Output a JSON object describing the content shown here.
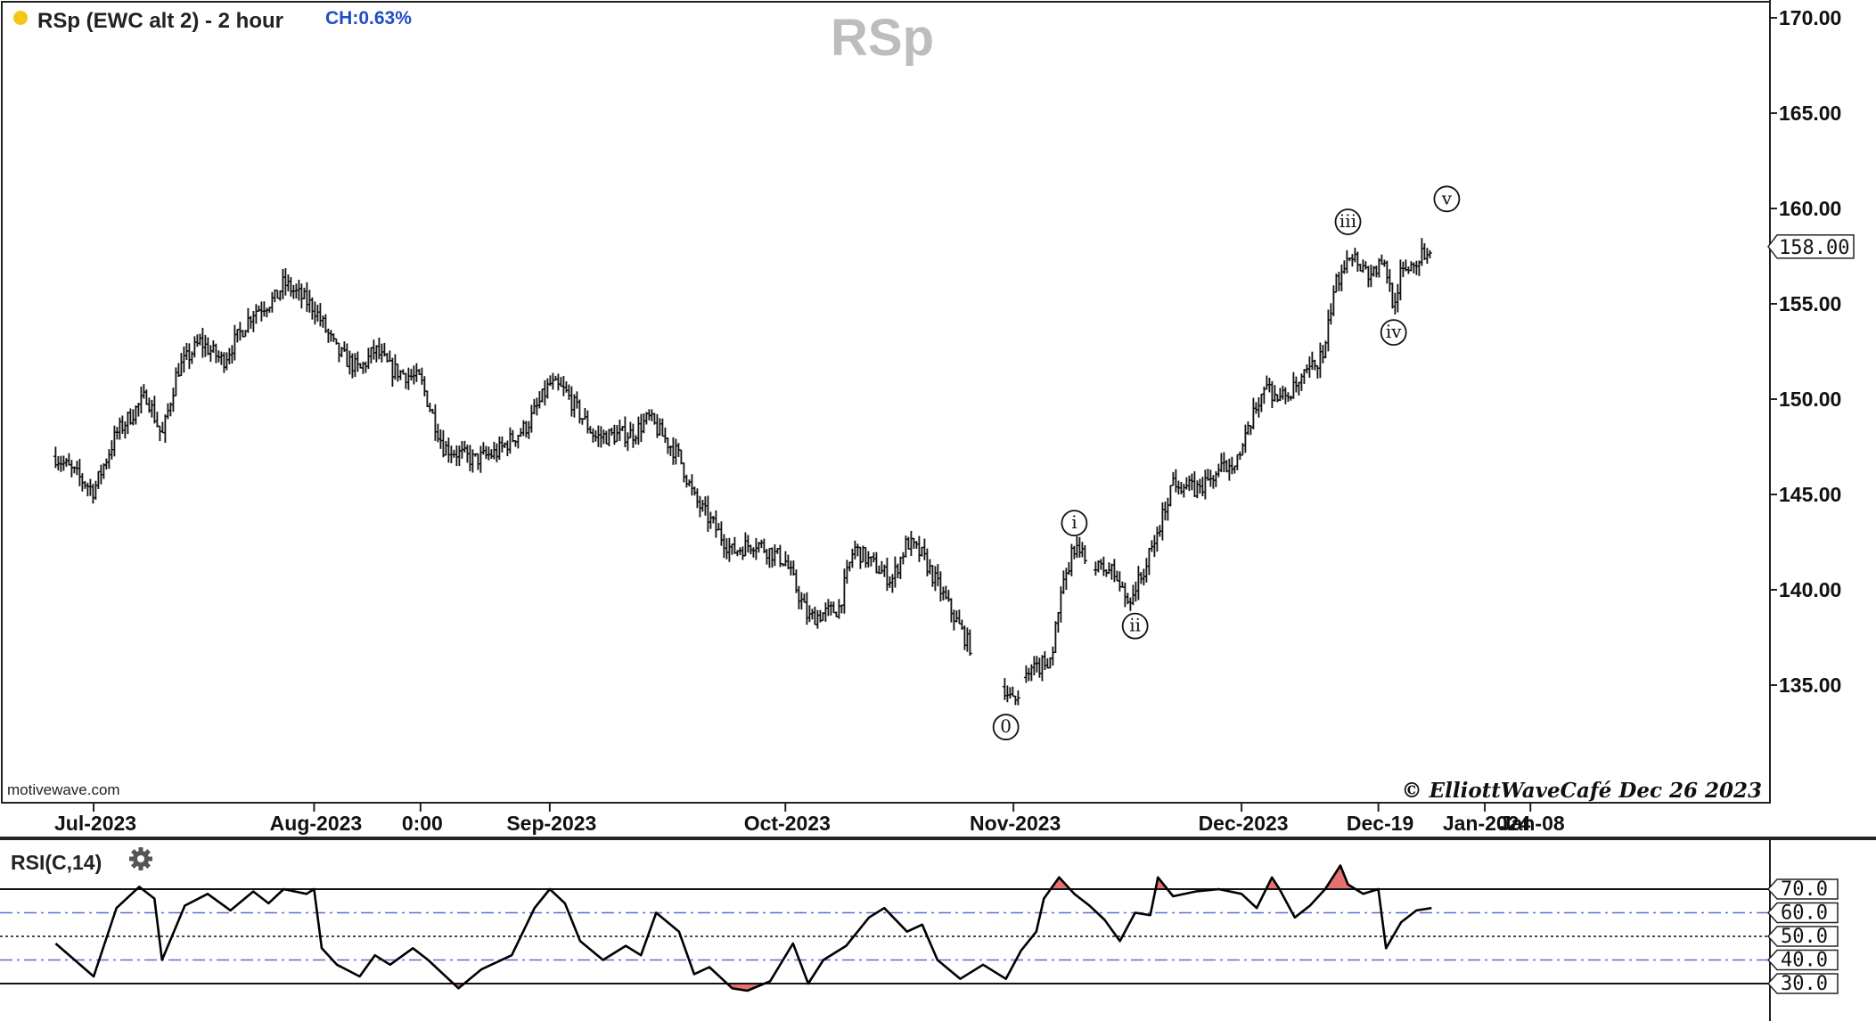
{
  "header": {
    "status_dot_color": "#f5c518",
    "title": "RSp (EWC alt 2) - 2 hour",
    "change": "CH:0.63%",
    "watermark": "RSp",
    "source": "motivewave.com",
    "copyright": "© ElliottWaveCafé Dec 26 2023"
  },
  "chart_data": [
    {
      "type": "ohlc",
      "title": "RSp (EWC alt 2) - 2 hour",
      "x_type": "date",
      "x_tick_labels": [
        "Jul-2023",
        "Aug-2023",
        "0:00",
        "Sep-2023",
        "Oct-2023",
        "Nov-2023",
        "Dec-2023",
        "Dec-19",
        "Jan-2024",
        "Jan-08"
      ],
      "x_tick_dates": [
        "2023-07-03",
        "2023-08-01",
        "2023-08-15",
        "2023-09-01",
        "2023-10-02",
        "2023-11-01",
        "2023-12-01",
        "2023-12-19",
        "2024-01-02",
        "2024-01-08"
      ],
      "y_tick_labels": [
        "135.00",
        "140.00",
        "145.00",
        "150.00",
        "155.00",
        "160.00",
        "165.00",
        "170.00"
      ],
      "ylim": [
        130,
        171
      ],
      "last_price": "158.00",
      "grid": false,
      "series": [
        {
          "price_path": [
            [
              "2023-06-28",
              147.0
            ],
            [
              "2023-07-03",
              145.2
            ],
            [
              "2023-07-06",
              148.2
            ],
            [
              "2023-07-10",
              150.2
            ],
            [
              "2023-07-12",
              148.0
            ],
            [
              "2023-07-14",
              151.5
            ],
            [
              "2023-07-17",
              153.0
            ],
            [
              "2023-07-20",
              152.0
            ],
            [
              "2023-07-24",
              154.6
            ],
            [
              "2023-07-27",
              155.3
            ],
            [
              "2023-07-28",
              156.1
            ],
            [
              "2023-08-01",
              154.8
            ],
            [
              "2023-08-04",
              152.5
            ],
            [
              "2023-08-07",
              151.5
            ],
            [
              "2023-08-09",
              152.6
            ],
            [
              "2023-08-11",
              151.6
            ],
            [
              "2023-08-15",
              151.0
            ],
            [
              "2023-08-18",
              147.5
            ],
            [
              "2023-08-22",
              146.8
            ],
            [
              "2023-08-25",
              147.2
            ],
            [
              "2023-08-29",
              148.6
            ],
            [
              "2023-09-01",
              150.8
            ],
            [
              "2023-09-03",
              150.4
            ],
            [
              "2023-09-07",
              148.0
            ],
            [
              "2023-09-12",
              148.2
            ],
            [
              "2023-09-14",
              149.0
            ],
            [
              "2023-09-18",
              147.0
            ],
            [
              "2023-09-20",
              144.8
            ],
            [
              "2023-09-25",
              142.0
            ],
            [
              "2023-09-28",
              142.5
            ],
            [
              "2023-10-02",
              141.5
            ],
            [
              "2023-10-05",
              138.5
            ],
            [
              "2023-10-09",
              139.0
            ],
            [
              "2023-10-11",
              142.2
            ],
            [
              "2023-10-13",
              141.5
            ],
            [
              "2023-10-16",
              140.5
            ],
            [
              "2023-10-18",
              142.5
            ],
            [
              "2023-10-20",
              141.8
            ],
            [
              "2023-10-23",
              139.5
            ],
            [
              "2023-10-26",
              137.2
            ],
            [
              "2023-10-30",
              135.5
            ],
            [
              "2023-11-01",
              134.0
            ],
            [
              "2023-11-03",
              135.5
            ],
            [
              "2023-11-06",
              136.5
            ],
            [
              "2023-11-07",
              139.2
            ],
            [
              "2023-11-09",
              142.3
            ],
            [
              "2023-11-11",
              141.2
            ],
            [
              "2023-11-14",
              141.0
            ],
            [
              "2023-11-16",
              139.4
            ],
            [
              "2023-11-18",
              140.8
            ],
            [
              "2023-11-20",
              143.0
            ],
            [
              "2023-11-22",
              145.8
            ],
            [
              "2023-11-25",
              145.2
            ],
            [
              "2023-11-29",
              146.5
            ],
            [
              "2023-12-01",
              147.2
            ],
            [
              "2023-12-04",
              150.8
            ],
            [
              "2023-12-06",
              150.0
            ],
            [
              "2023-12-08",
              150.5
            ],
            [
              "2023-12-10",
              151.5
            ],
            [
              "2023-12-12",
              152.5
            ],
            [
              "2023-12-13",
              155.5
            ],
            [
              "2023-12-15",
              157.8
            ],
            [
              "2023-12-18",
              156.5
            ],
            [
              "2023-12-19",
              157.0
            ],
            [
              "2023-12-20",
              156.8
            ],
            [
              "2023-12-21",
              155.0
            ],
            [
              "2023-12-22",
              156.6
            ],
            [
              "2023-12-26",
              158.0
            ]
          ]
        }
      ],
      "annotations": [
        {
          "label": "0",
          "x": "2023-10-31",
          "y": 132.8,
          "anchor": "below"
        },
        {
          "label": "i",
          "x": "2023-11-09",
          "y": 143.5,
          "anchor": "above"
        },
        {
          "label": "ii",
          "x": "2023-11-17",
          "y": 138.1,
          "anchor": "below"
        },
        {
          "label": "iii",
          "x": "2023-12-15",
          "y": 159.3,
          "anchor": "above"
        },
        {
          "label": "iv",
          "x": "2023-12-21",
          "y": 153.5,
          "anchor": "below"
        },
        {
          "label": "v",
          "x": "2023-12-28",
          "y": 160.5,
          "anchor": "above"
        }
      ]
    },
    {
      "type": "line",
      "title": "RSI(C,14)",
      "ylim": [
        25,
        80
      ],
      "y_tick_labels": [
        "30.0",
        "40.0",
        "50.0",
        "60.0",
        "70.0"
      ],
      "reference_lines": [
        30,
        40,
        50,
        60,
        70
      ],
      "overbought": 70,
      "oversold": 30,
      "line_color": "#000000",
      "fill_color": "#e87070",
      "band_color": "#5a6fd6",
      "series": [
        {
          "points": [
            [
              "2023-06-28",
              47
            ],
            [
              "2023-07-03",
              33
            ],
            [
              "2023-07-06",
              62
            ],
            [
              "2023-07-09",
              71
            ],
            [
              "2023-07-11",
              66
            ],
            [
              "2023-07-12",
              40
            ],
            [
              "2023-07-15",
              63
            ],
            [
              "2023-07-18",
              68
            ],
            [
              "2023-07-21",
              61
            ],
            [
              "2023-07-24",
              69
            ],
            [
              "2023-07-26",
              64
            ],
            [
              "2023-07-28",
              70
            ],
            [
              "2023-07-31",
              68
            ],
            [
              "2023-08-01",
              70
            ],
            [
              "2023-08-02",
              45
            ],
            [
              "2023-08-04",
              38
            ],
            [
              "2023-08-07",
              33
            ],
            [
              "2023-08-09",
              42
            ],
            [
              "2023-08-11",
              38
            ],
            [
              "2023-08-14",
              45
            ],
            [
              "2023-08-16",
              40
            ],
            [
              "2023-08-18",
              34
            ],
            [
              "2023-08-20",
              28
            ],
            [
              "2023-08-23",
              36
            ],
            [
              "2023-08-27",
              42
            ],
            [
              "2023-08-30",
              62
            ],
            [
              "2023-09-01",
              70
            ],
            [
              "2023-09-03",
              64
            ],
            [
              "2023-09-05",
              48
            ],
            [
              "2023-09-08",
              40
            ],
            [
              "2023-09-11",
              46
            ],
            [
              "2023-09-13",
              42
            ],
            [
              "2023-09-15",
              60
            ],
            [
              "2023-09-18",
              52
            ],
            [
              "2023-09-20",
              34
            ],
            [
              "2023-09-22",
              37
            ],
            [
              "2023-09-25",
              28
            ],
            [
              "2023-09-27",
              27
            ],
            [
              "2023-09-30",
              31
            ],
            [
              "2023-10-03",
              47
            ],
            [
              "2023-10-05",
              30
            ],
            [
              "2023-10-07",
              40
            ],
            [
              "2023-10-10",
              46
            ],
            [
              "2023-10-13",
              58
            ],
            [
              "2023-10-15",
              62
            ],
            [
              "2023-10-18",
              52
            ],
            [
              "2023-10-20",
              55
            ],
            [
              "2023-10-22",
              40
            ],
            [
              "2023-10-25",
              32
            ],
            [
              "2023-10-28",
              38
            ],
            [
              "2023-10-31",
              32
            ],
            [
              "2023-11-02",
              44
            ],
            [
              "2023-11-04",
              52
            ],
            [
              "2023-11-05",
              66
            ],
            [
              "2023-11-07",
              75
            ],
            [
              "2023-11-09",
              68
            ],
            [
              "2023-11-11",
              63
            ],
            [
              "2023-11-13",
              57
            ],
            [
              "2023-11-15",
              48
            ],
            [
              "2023-11-17",
              60
            ],
            [
              "2023-11-19",
              59
            ],
            [
              "2023-11-20",
              75
            ],
            [
              "2023-11-22",
              67
            ],
            [
              "2023-11-25",
              69
            ],
            [
              "2023-11-28",
              70
            ],
            [
              "2023-12-01",
              68
            ],
            [
              "2023-12-03",
              62
            ],
            [
              "2023-12-05",
              75
            ],
            [
              "2023-12-06",
              70
            ],
            [
              "2023-12-08",
              58
            ],
            [
              "2023-12-10",
              63
            ],
            [
              "2023-12-12",
              70
            ],
            [
              "2023-12-14",
              80
            ],
            [
              "2023-12-15",
              72
            ],
            [
              "2023-12-17",
              68
            ],
            [
              "2023-12-19",
              70
            ],
            [
              "2023-12-20",
              45
            ],
            [
              "2023-12-22",
              56
            ],
            [
              "2023-12-24",
              61
            ],
            [
              "2023-12-26",
              62
            ]
          ]
        }
      ]
    }
  ]
}
